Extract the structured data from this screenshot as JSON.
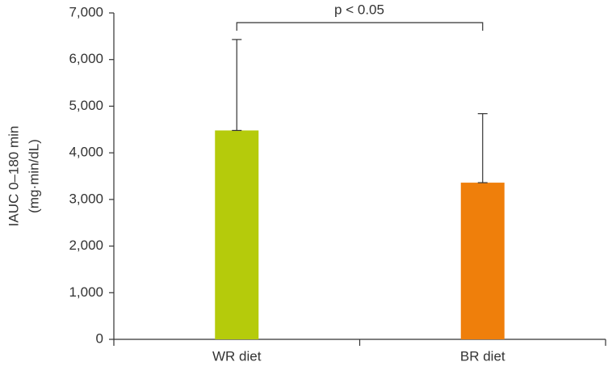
{
  "chart_data": {
    "type": "bar",
    "ylabel": [
      "IAUC 0–180 min",
      "(mg·min/dL)"
    ],
    "annotation": "p < 0.05",
    "categories": [
      "WR diet",
      "BR diet"
    ],
    "values": [
      4480,
      3360
    ],
    "errors": [
      1950,
      1480
    ],
    "colors": [
      "#b5cb0b",
      "#ef7f0b"
    ],
    "ylim": [
      0,
      7000
    ],
    "yticks": [
      0,
      {
        "value": 1000,
        "label": "1,000"
      },
      {
        "value": 2000,
        "label": "2,000"
      },
      {
        "value": 3000,
        "label": "3,000"
      },
      {
        "value": 4000,
        "label": "4,000"
      },
      {
        "value": 5000,
        "label": "5,000"
      },
      {
        "value": 6000,
        "label": "6,000"
      },
      {
        "value": 7000,
        "label": "7,000"
      }
    ],
    "grid": false
  }
}
